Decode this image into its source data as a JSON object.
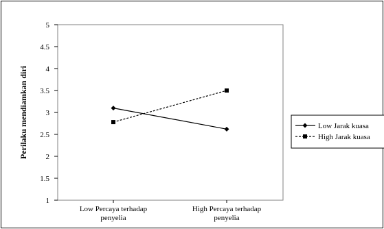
{
  "chart_data": {
    "type": "line",
    "title": "",
    "xlabel": "",
    "ylabel": "Perilaku mendiamkan diri",
    "ylim": [
      1,
      5
    ],
    "yticks": [
      "1",
      "1.5",
      "2",
      "2.5",
      "3",
      "3.5",
      "4",
      "4.5",
      "5"
    ],
    "categories": [
      [
        "Low Percaya terhadap",
        "penyelia"
      ],
      [
        "High Percaya terhadap",
        "penyelia"
      ]
    ],
    "series": [
      {
        "name": "Low Jarak kuasa",
        "values": [
          3.1,
          2.62
        ],
        "style": "solid",
        "marker": "diamond",
        "color": "#000000"
      },
      {
        "name": "High Jarak kuasa",
        "values": [
          2.78,
          3.5
        ],
        "style": "dashed",
        "marker": "square",
        "color": "#000000"
      }
    ],
    "grid": false,
    "legend_position": "right"
  }
}
